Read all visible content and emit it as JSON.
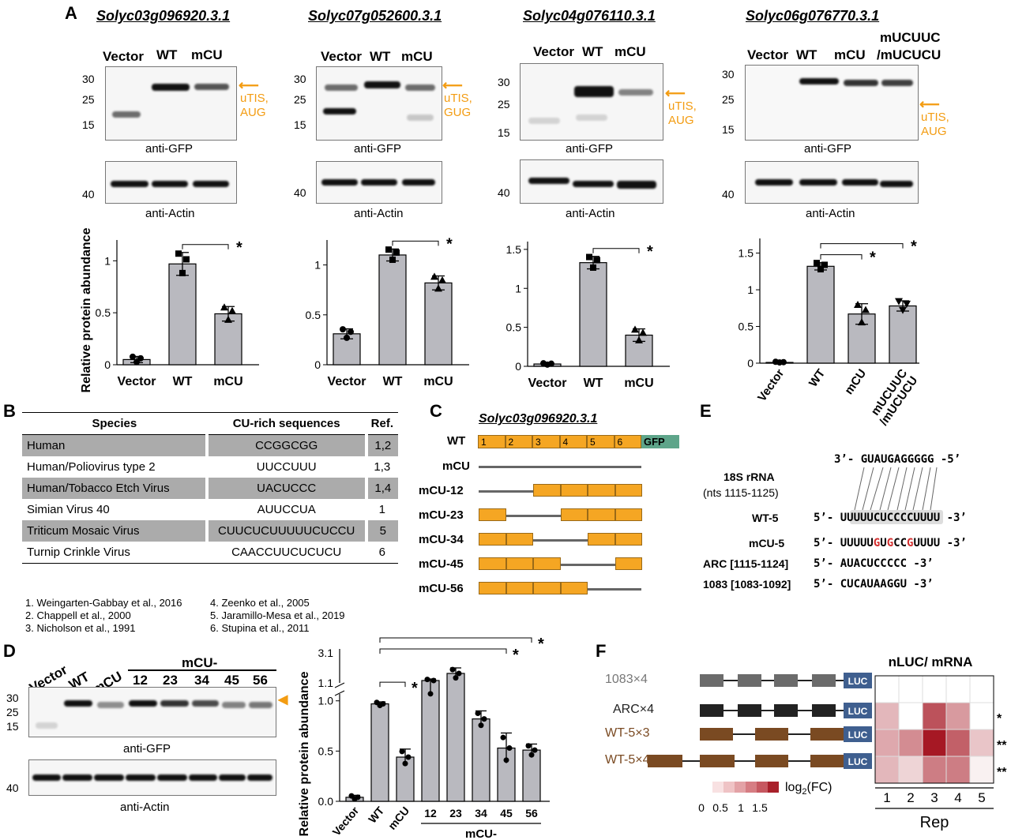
{
  "panel_A": {
    "letter": "A",
    "blots": [
      {
        "gene": "Solyc03g096920.3.1",
        "lanes": [
          "Vector",
          "WT",
          "mCU"
        ],
        "mw": [
          "30",
          "25",
          "15"
        ],
        "mw_actin": "40",
        "arrow_label": [
          "uTIS,",
          "AUG"
        ],
        "gfp_label": "anti-GFP",
        "actin_label": "anti-Actin"
      },
      {
        "gene": "Solyc07g052600.3.1",
        "lanes": [
          "Vector",
          "WT",
          "mCU"
        ],
        "mw": [
          "30",
          "25",
          "15"
        ],
        "mw_actin": "40",
        "arrow_label": [
          "uTIS,",
          "GUG"
        ],
        "gfp_label": "anti-GFP",
        "actin_label": "anti-Actin"
      },
      {
        "gene": "Solyc04g076110.3.1",
        "lanes": [
          "Vector",
          "WT",
          "mCU"
        ],
        "mw": [
          "30",
          "25",
          "15"
        ],
        "mw_actin": "40",
        "arrow_label": [
          "uTIS,",
          "AUG"
        ],
        "gfp_label": "anti-GFP",
        "actin_label": "anti-Actin"
      },
      {
        "gene": "Solyc06g076770.3.1",
        "lanes": [
          "Vector",
          "WT",
          "mCU",
          "mUCUUC",
          "/mUCUCU"
        ],
        "mw": [
          "30",
          "25",
          "15"
        ],
        "mw_actin": "40",
        "arrow_label": [
          "uTIS,",
          "AUG"
        ],
        "gfp_label": "anti-GFP",
        "actin_label": "anti-Actin"
      }
    ]
  },
  "chart_data": [
    {
      "type": "bar",
      "ylabel": "Relative protein abundance",
      "categories": [
        "Vector",
        "WT",
        "mCU"
      ],
      "values": [
        0.05,
        0.97,
        0.49
      ],
      "errors": [
        0.03,
        0.11,
        0.07
      ],
      "ylim": [
        0,
        1.2
      ],
      "yticks": [
        "0",
        "0.5",
        "1"
      ],
      "significance": [
        {
          "between": [
            "WT",
            "mCU"
          ],
          "label": "*"
        }
      ]
    },
    {
      "type": "bar",
      "categories": [
        "Vector",
        "WT",
        "mCU"
      ],
      "values": [
        0.31,
        1.1,
        0.82
      ],
      "errors": [
        0.05,
        0.06,
        0.07
      ],
      "ylim": [
        0,
        1.25
      ],
      "yticks": [
        "0",
        "0.5",
        "1"
      ],
      "significance": [
        {
          "between": [
            "WT",
            "mCU"
          ],
          "label": "*"
        }
      ]
    },
    {
      "type": "bar",
      "categories": [
        "Vector",
        "WT",
        "mCU"
      ],
      "values": [
        0.03,
        1.33,
        0.4
      ],
      "errors": [
        0.01,
        0.08,
        0.08
      ],
      "ylim": [
        0,
        1.6
      ],
      "yticks": [
        "0",
        "0.5",
        "1",
        "1.5"
      ],
      "significance": [
        {
          "between": [
            "WT",
            "mCU"
          ],
          "label": "*"
        }
      ]
    },
    {
      "type": "bar",
      "categories": [
        "Vector",
        "WT",
        "mCU",
        "mUCUUC /mUCUCU"
      ],
      "values": [
        0.01,
        1.32,
        0.67,
        0.78
      ],
      "errors": [
        0.01,
        0.05,
        0.14,
        0.07
      ],
      "ylim": [
        0,
        1.7
      ],
      "yticks": [
        "0",
        "0.5",
        "1",
        "1.5"
      ],
      "significance": [
        {
          "between": [
            "WT",
            "mCU"
          ],
          "label": "*"
        },
        {
          "between": [
            "WT",
            "mUCUUC /mUCUCU"
          ],
          "label": "*"
        }
      ]
    },
    {
      "type": "bar",
      "ylabel": "Relative protein abundance",
      "categories": [
        "Vector",
        "WT",
        "mCU",
        "12",
        "23",
        "34",
        "45",
        "56"
      ],
      "values": [
        0.04,
        0.97,
        0.44,
        1.15,
        1.6,
        0.82,
        0.53,
        0.51
      ],
      "errors": [
        0.02,
        0.02,
        0.08,
        0.1,
        0.35,
        0.08,
        0.15,
        0.06
      ],
      "yticks": [
        "0.0",
        "0.5",
        "1.0",
        "1.1",
        "3.1"
      ],
      "group_label": "mCU-",
      "significance": [
        {
          "between": [
            "WT",
            "mCU"
          ],
          "label": "*"
        },
        {
          "between": [
            "WT",
            "45"
          ],
          "label": "*"
        },
        {
          "between": [
            "WT",
            "56"
          ],
          "label": "*"
        }
      ]
    },
    {
      "type": "heatmap",
      "title": "nLUC/ mRNA",
      "rows": [
        "1083×4",
        "ARC×4",
        "WT-5×3",
        "WT-5×4"
      ],
      "columns": [
        "1",
        "2",
        "3",
        "4",
        "5"
      ],
      "xlabel": "Rep",
      "legend_label": "log2(FC)",
      "legend_ticks": [
        "0",
        "0.5",
        "1",
        "1.5"
      ],
      "values": [
        [
          0,
          0,
          0,
          0,
          0
        ],
        [
          0.5,
          0,
          1.2,
          0.7,
          0
        ],
        [
          0.6,
          0.8,
          1.6,
          1.1,
          0.4
        ],
        [
          0.5,
          0.3,
          0.9,
          0.9,
          0.1
        ]
      ],
      "row_marks": [
        "",
        "*",
        "**",
        "**"
      ]
    }
  ],
  "panel_B": {
    "letter": "B",
    "headers": [
      "Species",
      "CU-rich sequences",
      "Ref."
    ],
    "rows": [
      [
        "Human",
        "CCGGCGG",
        "1,2"
      ],
      [
        "Human/Poliovirus type 2",
        "UUCCUUU",
        "1,3"
      ],
      [
        "Human/Tobacco Etch Virus",
        "UACUCCC",
        "1,4"
      ],
      [
        "Simian Virus 40",
        "AUUCCUA",
        "1"
      ],
      [
        "Triticum Mosaic Virus",
        "CUUCUCUUUUUCUCCU",
        "5"
      ],
      [
        "Turnip Crinkle Virus",
        "CAACCUUCUCUCU",
        "6"
      ]
    ],
    "refs_left": [
      "1. Weingarten-Gabbay et al., 2016",
      "2. Chappell et al., 2000",
      "3. Nicholson et al., 1991"
    ],
    "refs_right": [
      "4. Zeenko et al., 2005",
      "5. Jaramillo-Mesa et al., 2019",
      "6. Stupina et al., 2011"
    ]
  },
  "panel_C": {
    "letter": "C",
    "gene": "Solyc03g096920.3.1",
    "wt_label": "WT",
    "segments": [
      "1",
      "2",
      "3",
      "4",
      "5",
      "6"
    ],
    "gfp": "GFP",
    "constructs": [
      "mCU",
      "mCU-12",
      "mCU-23",
      "mCU-34",
      "mCU-45",
      "mCU-56"
    ]
  },
  "panel_D": {
    "letter": "D",
    "lanes": [
      "Vector",
      "WT",
      "mCU"
    ],
    "group": "mCU-",
    "sub_lanes": [
      "12",
      "23",
      "34",
      "45",
      "56"
    ],
    "mw": [
      "30",
      "25",
      "15"
    ],
    "mw_actin": "40",
    "gfp_label": "anti-GFP",
    "actin_label": "anti-Actin"
  },
  "panel_E": {
    "letter": "E",
    "rrna_seq": "3’- GUAUGAGGGGG -5’",
    "rrna_label": "18S rRNA",
    "rrna_sub": "(nts 1115-1125)",
    "rows": [
      {
        "label": "WT-5",
        "seq": "5’- UUUUUCUCCCCUUUU -3’"
      },
      {
        "label": "mCU-5",
        "seq_parts": [
          "5’- UUUUU",
          "G",
          "U",
          "G",
          "CC",
          "G",
          "UUUU -3’"
        ]
      },
      {
        "label": "ARC [1115-1124]",
        "seq": "5’- AUACUCCCCC -3’"
      },
      {
        "label": "1083 [1083-1092]",
        "seq": "5’- CUCAUAAGGU -3’"
      }
    ]
  },
  "panel_F": {
    "letter": "F",
    "luc": "LUC",
    "constructs": [
      "1083×4",
      "ARC×4",
      "WT-5×3",
      "WT-5×4"
    ],
    "colors": {
      "1083": "#6b6b6b",
      "ARC": "#222222",
      "WT": "#7a4a22",
      "luc": "#3f5f8f"
    }
  }
}
